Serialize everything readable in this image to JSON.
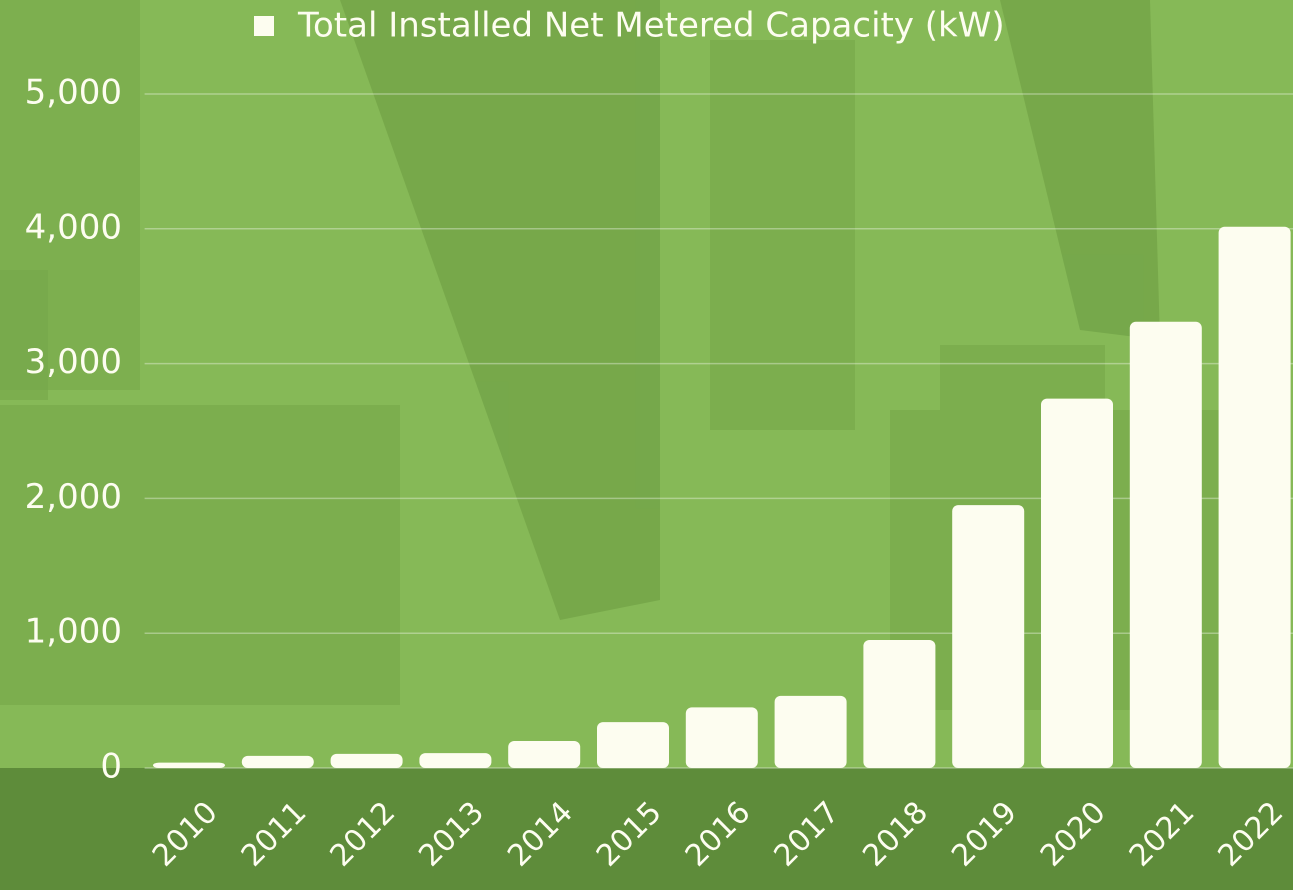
{
  "chart_data": {
    "type": "bar",
    "legend": "Total Installed Net Metered Capacity (kW)",
    "color": "#fdfdf0",
    "categories": [
      "2010",
      "2011",
      "2012",
      "2013",
      "2014",
      "2015",
      "2016",
      "2017",
      "2018",
      "2019",
      "2020",
      "2021",
      "2022"
    ],
    "values": [
      40,
      90,
      105,
      110,
      200,
      340,
      450,
      535,
      950,
      1950,
      2740,
      3310,
      4015
    ],
    "ylim": [
      0,
      5000
    ],
    "yticks": [
      0,
      {
        "value": 1000,
        "label": "1,000"
      },
      {
        "value": 2000,
        "label": "2,000"
      },
      {
        "value": 3000,
        "label": "3,000"
      },
      {
        "value": 4000,
        "label": "4,000"
      },
      {
        "value": 5000,
        "label": "5,000"
      }
    ],
    "grid": true
  }
}
